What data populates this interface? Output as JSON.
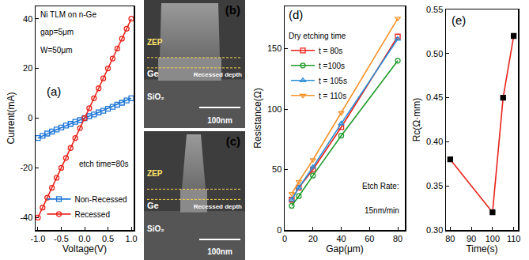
{
  "chart_data": [
    {
      "type": "line",
      "label": "(a)",
      "annotations": [
        "Ni TLM on n-Ge",
        "gap=5μm",
        "W=50μm",
        "etch time=80s"
      ],
      "x_label": "Voltage(V)",
      "y_label": "Current(mA)",
      "x": [
        -1.0,
        -0.9,
        -0.8,
        -0.7,
        -0.6,
        -0.5,
        -0.4,
        -0.3,
        -0.2,
        -0.1,
        0.0,
        0.1,
        0.2,
        0.3,
        0.4,
        0.5,
        0.6,
        0.7,
        0.8,
        0.9,
        1.0
      ],
      "series": [
        {
          "name": "Non-Recessed",
          "color": "#1f77d8",
          "marker": "square-open",
          "values": [
            -8,
            -7.1,
            -6.2,
            -5.4,
            -4.6,
            -3.8,
            -3.0,
            -2.3,
            -1.5,
            -0.8,
            0,
            0.8,
            1.5,
            2.3,
            3.0,
            3.8,
            4.6,
            5.4,
            6.2,
            7.1,
            8
          ]
        },
        {
          "name": "Recessed",
          "color": "#e8231b",
          "marker": "circle-open",
          "values": [
            -40,
            -36,
            -32,
            -28,
            -24,
            -20,
            -16,
            -12,
            -8,
            -4,
            0,
            4,
            8,
            12,
            16,
            20,
            24,
            28,
            32,
            36,
            40
          ]
        }
      ],
      "xlim": [
        -1.05,
        1.05
      ],
      "xticks": [
        {
          "value": -1,
          "label": "-1.0"
        },
        {
          "value": -0.5,
          "label": "-0.5"
        },
        {
          "value": 0,
          "label": "0.0"
        },
        {
          "value": 0.5,
          "label": "0.5"
        },
        {
          "value": 1,
          "label": "1.0"
        }
      ],
      "ylim": [
        -45,
        45
      ],
      "yticks": [
        -40,
        -20,
        0,
        20,
        40
      ],
      "legend": "lower right"
    },
    {
      "type": "image",
      "label": "(b)",
      "texts": [
        "ZEP",
        "Ge",
        "Recessed depth",
        "SiO₂"
      ],
      "scale_bar": "100nm"
    },
    {
      "type": "image",
      "label": "(c)",
      "texts": [
        "ZEP",
        "Ge",
        "Recessed depth",
        "SiO₂"
      ],
      "scale_bar": "100nm"
    },
    {
      "type": "line",
      "label": "(d)",
      "annotations": [
        "Etch Rate:",
        "15nm/min"
      ],
      "x_label": "Gap(μm)",
      "y_label": "Resistance(Ω)",
      "x": [
        5,
        10,
        20,
        40,
        80
      ],
      "legend_title": "Dry etching time",
      "series": [
        {
          "name": "t = 80s",
          "color": "#e8231b",
          "marker": "square-open",
          "values": [
            25,
            35,
            50,
            85,
            160
          ]
        },
        {
          "name": "t =100s",
          "color": "#1f9a2a",
          "marker": "circle-open",
          "values": [
            20,
            28,
            45,
            78,
            140
          ]
        },
        {
          "name": "t = 105s",
          "color": "#2a8fd8",
          "marker": "triangle-up-open",
          "values": [
            25,
            35,
            52,
            88,
            158
          ]
        },
        {
          "name": "t = 110s",
          "color": "#f5922a",
          "marker": "triangle-down-open",
          "values": [
            30,
            40,
            58,
            97,
            175
          ]
        }
      ],
      "xlim": [
        0,
        85
      ],
      "xticks": [
        0,
        20,
        40,
        60,
        80
      ],
      "ylim": [
        0,
        185
      ],
      "yticks": [
        0,
        50,
        100,
        150
      ],
      "legend": "upper left"
    },
    {
      "type": "line",
      "label": "(e)",
      "annotations": [],
      "x_label": "Time(s)",
      "y_label": "Rc(Ω·mm)",
      "x": [
        80,
        100,
        105,
        110
      ],
      "series": [
        {
          "color": "#e8231b",
          "marker": "square",
          "values": [
            0.38,
            0.32,
            0.45,
            0.52
          ]
        }
      ],
      "xlim": [
        78,
        112
      ],
      "xticks": [
        80,
        90,
        100,
        110
      ],
      "ylim": [
        0.3,
        0.55
      ],
      "yticks": [
        {
          "value": 0.3,
          "label": "0.30"
        },
        0.35,
        {
          "value": 0.4,
          "label": "0.40"
        },
        0.45,
        {
          "value": 0.5,
          "label": "0.50"
        },
        0.55
      ]
    }
  ]
}
